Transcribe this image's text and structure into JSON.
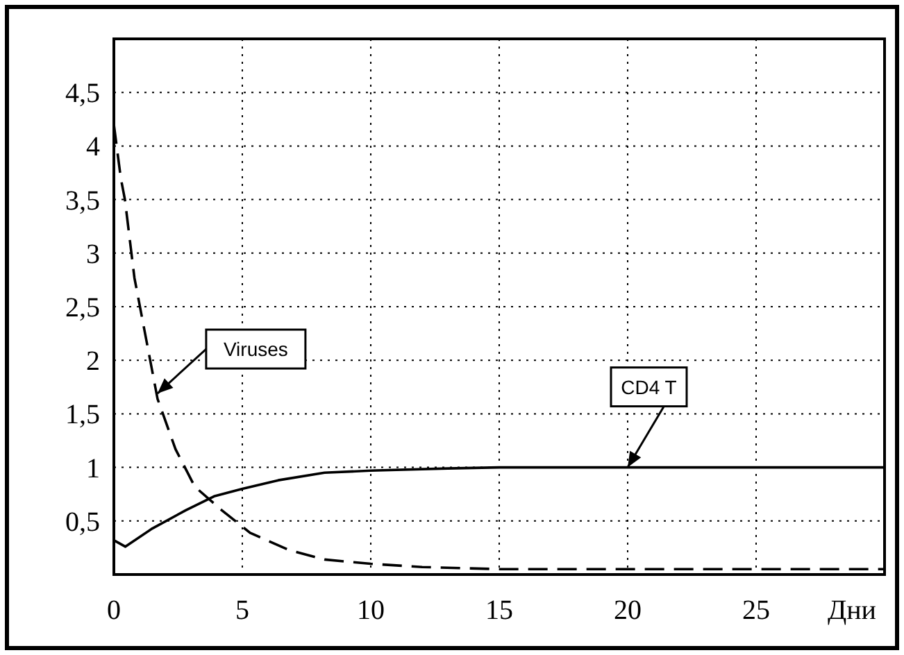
{
  "chart_data": {
    "type": "line",
    "xlabel": "Дни",
    "xlim": [
      0,
      30
    ],
    "xticks": [
      0,
      5,
      10,
      15,
      20,
      25
    ],
    "ylim": [
      0,
      5
    ],
    "yticks": [
      {
        "value": 0.5,
        "label": "0,5"
      },
      1,
      {
        "value": 1.5,
        "label": "1,5"
      },
      2,
      {
        "value": 2.5,
        "label": "2,5"
      },
      3,
      {
        "value": 3.5,
        "label": "3,5"
      },
      4,
      {
        "value": 4.5,
        "label": "4,5"
      }
    ],
    "grid": true,
    "series": [
      {
        "color": "#000000",
        "line_style": "dashed",
        "x": [
          0,
          0.27,
          0.43,
          0.8,
          1.35,
          1.7,
          2.4,
          3.15,
          4.2,
          5.3,
          6.8,
          8.2,
          10,
          12,
          15,
          20,
          25,
          30
        ],
        "values": [
          4.2,
          3.7,
          3.5,
          2.77,
          2.08,
          1.64,
          1.17,
          0.82,
          0.6,
          0.39,
          0.23,
          0.14,
          0.1,
          0.07,
          0.05,
          0.05,
          0.05,
          0.05
        ]
      },
      {
        "color": "#000000",
        "line_style": "solid",
        "x": [
          0,
          0.45,
          1.5,
          2.8,
          3.9,
          5,
          6.4,
          8.2,
          10,
          13,
          15,
          20,
          25,
          30
        ],
        "values": [
          0.32,
          0.26,
          0.43,
          0.6,
          0.73,
          0.8,
          0.88,
          0.95,
          0.97,
          0.99,
          1,
          1,
          1,
          1
        ]
      }
    ],
    "annotations": [
      {
        "text": "Viruses",
        "x": 1.7,
        "y": 1.69
      },
      {
        "text": "CD4 T",
        "x": 20,
        "y": 1
      }
    ]
  }
}
